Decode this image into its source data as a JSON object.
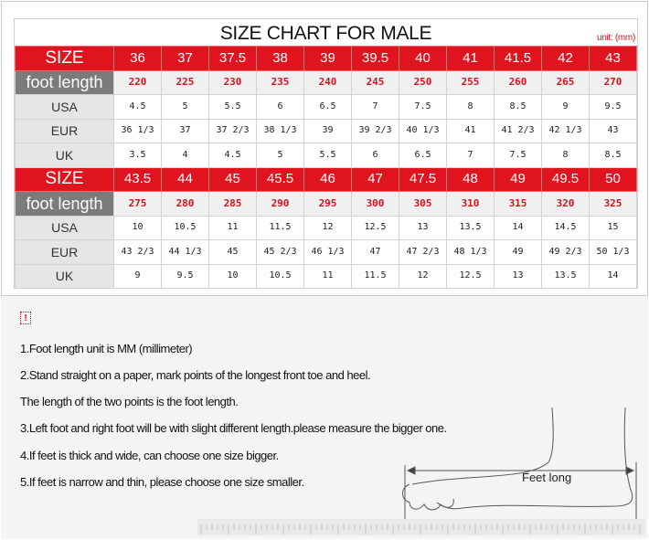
{
  "title": "SIZE CHART FOR MALE",
  "unit": "unit: (mm)",
  "labels": {
    "size": "SIZE",
    "foot": "foot length",
    "usa": "USA",
    "eur": "EUR",
    "uk": "UK"
  },
  "blocks": [
    {
      "size": [
        "36",
        "37",
        "37.5",
        "38",
        "39",
        "39.5",
        "40",
        "41",
        "41.5",
        "42",
        "43"
      ],
      "foot": [
        "220",
        "225",
        "230",
        "235",
        "240",
        "245",
        "250",
        "255",
        "260",
        "265",
        "270"
      ],
      "usa": [
        "4.5",
        "5",
        "5.5",
        "6",
        "6.5",
        "7",
        "7.5",
        "8",
        "8.5",
        "9",
        "9.5"
      ],
      "eur": [
        "36 1/3",
        "37",
        "37 2/3",
        "38 1/3",
        "39",
        "39 2/3",
        "40 1/3",
        "41",
        "41 2/3",
        "42 1/3",
        "43"
      ],
      "uk": [
        "3.5",
        "4",
        "4.5",
        "5",
        "5.5",
        "6",
        "6.5",
        "7",
        "7.5",
        "8",
        "8.5"
      ]
    },
    {
      "size": [
        "43.5",
        "44",
        "45",
        "45.5",
        "46",
        "47",
        "47.5",
        "48",
        "49",
        "49.5",
        "50"
      ],
      "foot": [
        "275",
        "280",
        "285",
        "290",
        "295",
        "300",
        "305",
        "310",
        "315",
        "320",
        "325"
      ],
      "usa": [
        "10",
        "10.5",
        "11",
        "11.5",
        "12",
        "12.5",
        "13",
        "13.5",
        "14",
        "14.5",
        "15"
      ],
      "eur": [
        "43 2/3",
        "44 1/3",
        "45",
        "45 2/3",
        "46 1/3",
        "47",
        "47 2/3",
        "48 1/3",
        "49",
        "49 2/3",
        "50 1/3"
      ],
      "uk": [
        "9",
        "9.5",
        "10",
        "10.5",
        "11",
        "11.5",
        "12",
        "12.5",
        "13",
        "13.5",
        "14"
      ]
    }
  ],
  "notes": {
    "warning_icon": "!",
    "lines": [
      "1.Foot length unit is MM (millimeter)",
      "2.Stand straight on a paper, mark points of the longest front toe and heel.",
      "The length of the two points is the foot length.",
      "3.Left foot and right foot will be with slight different length.please measure the bigger one.",
      "4.If feet is thick and wide, can choose one size bigger.",
      "5.If feet is narrow and thin, please choose one size smaller."
    ],
    "diagram_label": "Feet long"
  },
  "colors": {
    "red": "#e0141f",
    "gray": "#7b7b7b"
  }
}
